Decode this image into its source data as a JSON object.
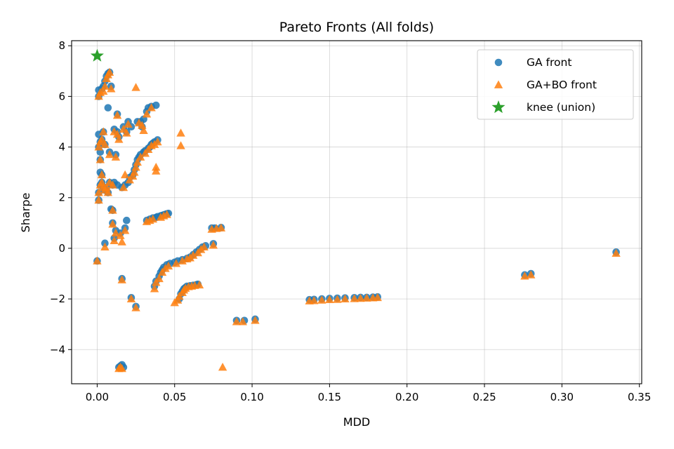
{
  "chart_data": {
    "type": "scatter",
    "title": "Pareto Fronts (All folds)",
    "xlabel": "MDD",
    "ylabel": "Sharpe",
    "xlim": [
      -0.0165,
      0.3515
    ],
    "ylim": [
      -5.35,
      8.2
    ],
    "xticks": [
      0.0,
      0.05,
      0.1,
      0.15,
      0.2,
      0.25,
      0.3,
      0.35
    ],
    "xtick_labels": [
      "0.00",
      "0.05",
      "0.10",
      "0.15",
      "0.20",
      "0.25",
      "0.30",
      "0.35"
    ],
    "yticks": [
      -4,
      -2,
      0,
      2,
      4,
      6,
      8
    ],
    "ytick_labels": [
      "−4",
      "−2",
      "0",
      "2",
      "4",
      "6",
      "8"
    ],
    "grid": true,
    "legend_position": "top-right",
    "series": [
      {
        "name": "GA front",
        "marker": "circle",
        "color": "#1f77b4",
        "points": [
          [
            0.0,
            -0.5
          ],
          [
            0.001,
            1.9
          ],
          [
            0.001,
            2.2
          ],
          [
            0.001,
            4.0
          ],
          [
            0.001,
            4.5
          ],
          [
            0.001,
            6.0
          ],
          [
            0.001,
            6.25
          ],
          [
            0.002,
            2.5
          ],
          [
            0.002,
            3.0
          ],
          [
            0.002,
            3.5
          ],
          [
            0.002,
            3.8
          ],
          [
            0.002,
            4.2
          ],
          [
            0.003,
            2.6
          ],
          [
            0.003,
            2.9
          ],
          [
            0.003,
            4.3
          ],
          [
            0.003,
            6.3
          ],
          [
            0.004,
            2.4
          ],
          [
            0.004,
            4.6
          ],
          [
            0.004,
            6.4
          ],
          [
            0.005,
            2.3
          ],
          [
            0.005,
            4.1
          ],
          [
            0.005,
            0.2
          ],
          [
            0.005,
            6.6
          ],
          [
            0.006,
            2.4
          ],
          [
            0.006,
            6.8
          ],
          [
            0.007,
            2.2
          ],
          [
            0.007,
            5.55
          ],
          [
            0.007,
            6.9
          ],
          [
            0.008,
            2.6
          ],
          [
            0.008,
            3.8
          ],
          [
            0.008,
            6.95
          ],
          [
            0.009,
            1.55
          ],
          [
            0.009,
            6.4
          ],
          [
            0.01,
            1.5
          ],
          [
            0.01,
            1.0
          ],
          [
            0.01,
            2.5
          ],
          [
            0.011,
            0.4
          ],
          [
            0.011,
            4.7
          ],
          [
            0.011,
            2.6
          ],
          [
            0.012,
            3.7
          ],
          [
            0.012,
            0.7
          ],
          [
            0.013,
            4.6
          ],
          [
            0.013,
            5.3
          ],
          [
            0.013,
            2.5
          ],
          [
            0.014,
            4.4
          ],
          [
            0.014,
            -4.7
          ],
          [
            0.015,
            0.6
          ],
          [
            0.015,
            -4.65
          ],
          [
            0.016,
            -4.6
          ],
          [
            0.016,
            -1.2
          ],
          [
            0.016,
            2.4
          ],
          [
            0.017,
            4.8
          ],
          [
            0.017,
            -4.7
          ],
          [
            0.018,
            0.8
          ],
          [
            0.018,
            2.5
          ],
          [
            0.019,
            4.6
          ],
          [
            0.019,
            1.1
          ],
          [
            0.02,
            5.0
          ],
          [
            0.02,
            2.6
          ],
          [
            0.021,
            2.8
          ],
          [
            0.022,
            -1.95
          ],
          [
            0.022,
            4.8
          ],
          [
            0.023,
            2.9
          ],
          [
            0.024,
            3.1
          ],
          [
            0.025,
            3.3
          ],
          [
            0.025,
            -2.3
          ],
          [
            0.026,
            3.5
          ],
          [
            0.026,
            5.0
          ],
          [
            0.027,
            3.6
          ],
          [
            0.028,
            5.0
          ],
          [
            0.028,
            3.7
          ],
          [
            0.029,
            4.8
          ],
          [
            0.03,
            3.8
          ],
          [
            0.03,
            5.1
          ],
          [
            0.031,
            3.85
          ],
          [
            0.032,
            1.1
          ],
          [
            0.032,
            5.4
          ],
          [
            0.033,
            3.95
          ],
          [
            0.033,
            5.55
          ],
          [
            0.034,
            4.0
          ],
          [
            0.034,
            1.15
          ],
          [
            0.035,
            4.1
          ],
          [
            0.035,
            5.6
          ],
          [
            0.036,
            1.2
          ],
          [
            0.036,
            4.15
          ],
          [
            0.037,
            -1.5
          ],
          [
            0.037,
            4.2
          ],
          [
            0.038,
            1.22
          ],
          [
            0.038,
            5.65
          ],
          [
            0.038,
            -1.3
          ],
          [
            0.039,
            4.28
          ],
          [
            0.039,
            1.25
          ],
          [
            0.04,
            -1.1
          ],
          [
            0.041,
            1.28
          ],
          [
            0.041,
            -0.95
          ],
          [
            0.042,
            1.3
          ],
          [
            0.042,
            -0.85
          ],
          [
            0.043,
            1.32
          ],
          [
            0.043,
            -0.75
          ],
          [
            0.044,
            1.34
          ],
          [
            0.045,
            -0.65
          ],
          [
            0.045,
            1.36
          ],
          [
            0.046,
            1.38
          ],
          [
            0.047,
            -0.6
          ],
          [
            0.05,
            -0.55
          ],
          [
            0.052,
            -0.5
          ],
          [
            0.053,
            -2.0
          ],
          [
            0.054,
            -1.8
          ],
          [
            0.055,
            -0.45
          ],
          [
            0.055,
            -1.7
          ],
          [
            0.056,
            -1.6
          ],
          [
            0.057,
            -1.55
          ],
          [
            0.058,
            -0.4
          ],
          [
            0.058,
            -1.5
          ],
          [
            0.06,
            -1.48
          ],
          [
            0.06,
            -0.35
          ],
          [
            0.062,
            -1.46
          ],
          [
            0.062,
            -0.25
          ],
          [
            0.064,
            -1.44
          ],
          [
            0.064,
            -0.15
          ],
          [
            0.065,
            -1.42
          ],
          [
            0.066,
            -0.05
          ],
          [
            0.068,
            0.05
          ],
          [
            0.07,
            0.1
          ],
          [
            0.074,
            0.8
          ],
          [
            0.075,
            0.18
          ],
          [
            0.076,
            0.8
          ],
          [
            0.08,
            0.82
          ],
          [
            0.09,
            -2.85
          ],
          [
            0.095,
            -2.85
          ],
          [
            0.102,
            -2.8
          ],
          [
            0.137,
            -2.03
          ],
          [
            0.14,
            -2.02
          ],
          [
            0.145,
            -2.0
          ],
          [
            0.15,
            -1.98
          ],
          [
            0.155,
            -1.97
          ],
          [
            0.16,
            -1.96
          ],
          [
            0.166,
            -1.95
          ],
          [
            0.17,
            -1.94
          ],
          [
            0.174,
            -1.94
          ],
          [
            0.178,
            -1.93
          ],
          [
            0.181,
            -1.92
          ],
          [
            0.276,
            -1.05
          ],
          [
            0.28,
            -1.0
          ],
          [
            0.335,
            -0.15
          ]
        ]
      },
      {
        "name": "GA+BO front",
        "marker": "triangle",
        "color": "#ff7f0e",
        "points": [
          [
            0.0,
            -0.5
          ],
          [
            0.001,
            1.9
          ],
          [
            0.001,
            2.2
          ],
          [
            0.001,
            4.0
          ],
          [
            0.001,
            6.0
          ],
          [
            0.002,
            2.5
          ],
          [
            0.002,
            3.5
          ],
          [
            0.002,
            4.2
          ],
          [
            0.002,
            6.15
          ],
          [
            0.003,
            2.6
          ],
          [
            0.003,
            2.9
          ],
          [
            0.003,
            4.3
          ],
          [
            0.004,
            2.4
          ],
          [
            0.004,
            4.6
          ],
          [
            0.004,
            6.2
          ],
          [
            0.005,
            2.3
          ],
          [
            0.005,
            4.1
          ],
          [
            0.005,
            0.05
          ],
          [
            0.005,
            6.4
          ],
          [
            0.006,
            2.4
          ],
          [
            0.006,
            6.7
          ],
          [
            0.007,
            2.2
          ],
          [
            0.007,
            6.85
          ],
          [
            0.008,
            2.6
          ],
          [
            0.008,
            3.7
          ],
          [
            0.008,
            6.95
          ],
          [
            0.009,
            6.3
          ],
          [
            0.01,
            1.5
          ],
          [
            0.01,
            0.95
          ],
          [
            0.01,
            2.5
          ],
          [
            0.011,
            0.3
          ],
          [
            0.011,
            4.6
          ],
          [
            0.012,
            0.6
          ],
          [
            0.012,
            3.6
          ],
          [
            0.013,
            4.5
          ],
          [
            0.013,
            5.25
          ],
          [
            0.014,
            4.3
          ],
          [
            0.014,
            -4.75
          ],
          [
            0.015,
            0.5
          ],
          [
            0.015,
            -4.7
          ],
          [
            0.016,
            -4.75
          ],
          [
            0.016,
            -1.25
          ],
          [
            0.016,
            0.25
          ],
          [
            0.017,
            4.7
          ],
          [
            0.017,
            2.4
          ],
          [
            0.018,
            2.9
          ],
          [
            0.018,
            0.7
          ],
          [
            0.019,
            4.55
          ],
          [
            0.02,
            4.9
          ],
          [
            0.021,
            2.7
          ],
          [
            0.022,
            -2.0
          ],
          [
            0.023,
            2.85
          ],
          [
            0.024,
            3.0
          ],
          [
            0.025,
            6.35
          ],
          [
            0.025,
            3.2
          ],
          [
            0.025,
            -2.35
          ],
          [
            0.026,
            3.4
          ],
          [
            0.027,
            4.95
          ],
          [
            0.028,
            3.6
          ],
          [
            0.029,
            4.85
          ],
          [
            0.03,
            4.65
          ],
          [
            0.031,
            3.75
          ],
          [
            0.032,
            1.05
          ],
          [
            0.032,
            5.3
          ],
          [
            0.033,
            3.9
          ],
          [
            0.034,
            1.1
          ],
          [
            0.035,
            4.05
          ],
          [
            0.035,
            5.55
          ],
          [
            0.036,
            1.15
          ],
          [
            0.037,
            -1.6
          ],
          [
            0.037,
            4.1
          ],
          [
            0.038,
            3.2
          ],
          [
            0.038,
            3.05
          ],
          [
            0.038,
            -1.35
          ],
          [
            0.039,
            4.2
          ],
          [
            0.04,
            -1.2
          ],
          [
            0.041,
            1.22
          ],
          [
            0.042,
            -0.95
          ],
          [
            0.043,
            1.28
          ],
          [
            0.044,
            -0.8
          ],
          [
            0.045,
            1.33
          ],
          [
            0.046,
            -0.7
          ],
          [
            0.05,
            -2.15
          ],
          [
            0.051,
            -0.6
          ],
          [
            0.052,
            -2.05
          ],
          [
            0.053,
            -1.9
          ],
          [
            0.054,
            4.55
          ],
          [
            0.054,
            4.05
          ],
          [
            0.055,
            -1.75
          ],
          [
            0.055,
            -0.5
          ],
          [
            0.056,
            -1.65
          ],
          [
            0.057,
            -1.58
          ],
          [
            0.058,
            -0.42
          ],
          [
            0.059,
            -1.52
          ],
          [
            0.06,
            -0.38
          ],
          [
            0.061,
            -1.5
          ],
          [
            0.062,
            -0.28
          ],
          [
            0.063,
            -1.47
          ],
          [
            0.065,
            -0.18
          ],
          [
            0.066,
            -1.45
          ],
          [
            0.067,
            -0.05
          ],
          [
            0.069,
            0.05
          ],
          [
            0.074,
            0.75
          ],
          [
            0.075,
            0.12
          ],
          [
            0.077,
            0.78
          ],
          [
            0.08,
            0.8
          ],
          [
            0.081,
            -4.7
          ],
          [
            0.09,
            -2.9
          ],
          [
            0.094,
            -2.9
          ],
          [
            0.102,
            -2.85
          ],
          [
            0.137,
            -2.08
          ],
          [
            0.14,
            -2.07
          ],
          [
            0.145,
            -2.05
          ],
          [
            0.15,
            -2.03
          ],
          [
            0.155,
            -2.02
          ],
          [
            0.16,
            -2.0
          ],
          [
            0.166,
            -1.99
          ],
          [
            0.17,
            -1.98
          ],
          [
            0.174,
            -1.97
          ],
          [
            0.178,
            -1.96
          ],
          [
            0.181,
            -1.95
          ],
          [
            0.276,
            -1.1
          ],
          [
            0.28,
            -1.05
          ],
          [
            0.335,
            -0.2
          ]
        ]
      },
      {
        "name": "knee (union)",
        "marker": "star",
        "color": "#2ca02c",
        "points": [
          [
            0.0,
            7.6
          ]
        ]
      }
    ]
  }
}
